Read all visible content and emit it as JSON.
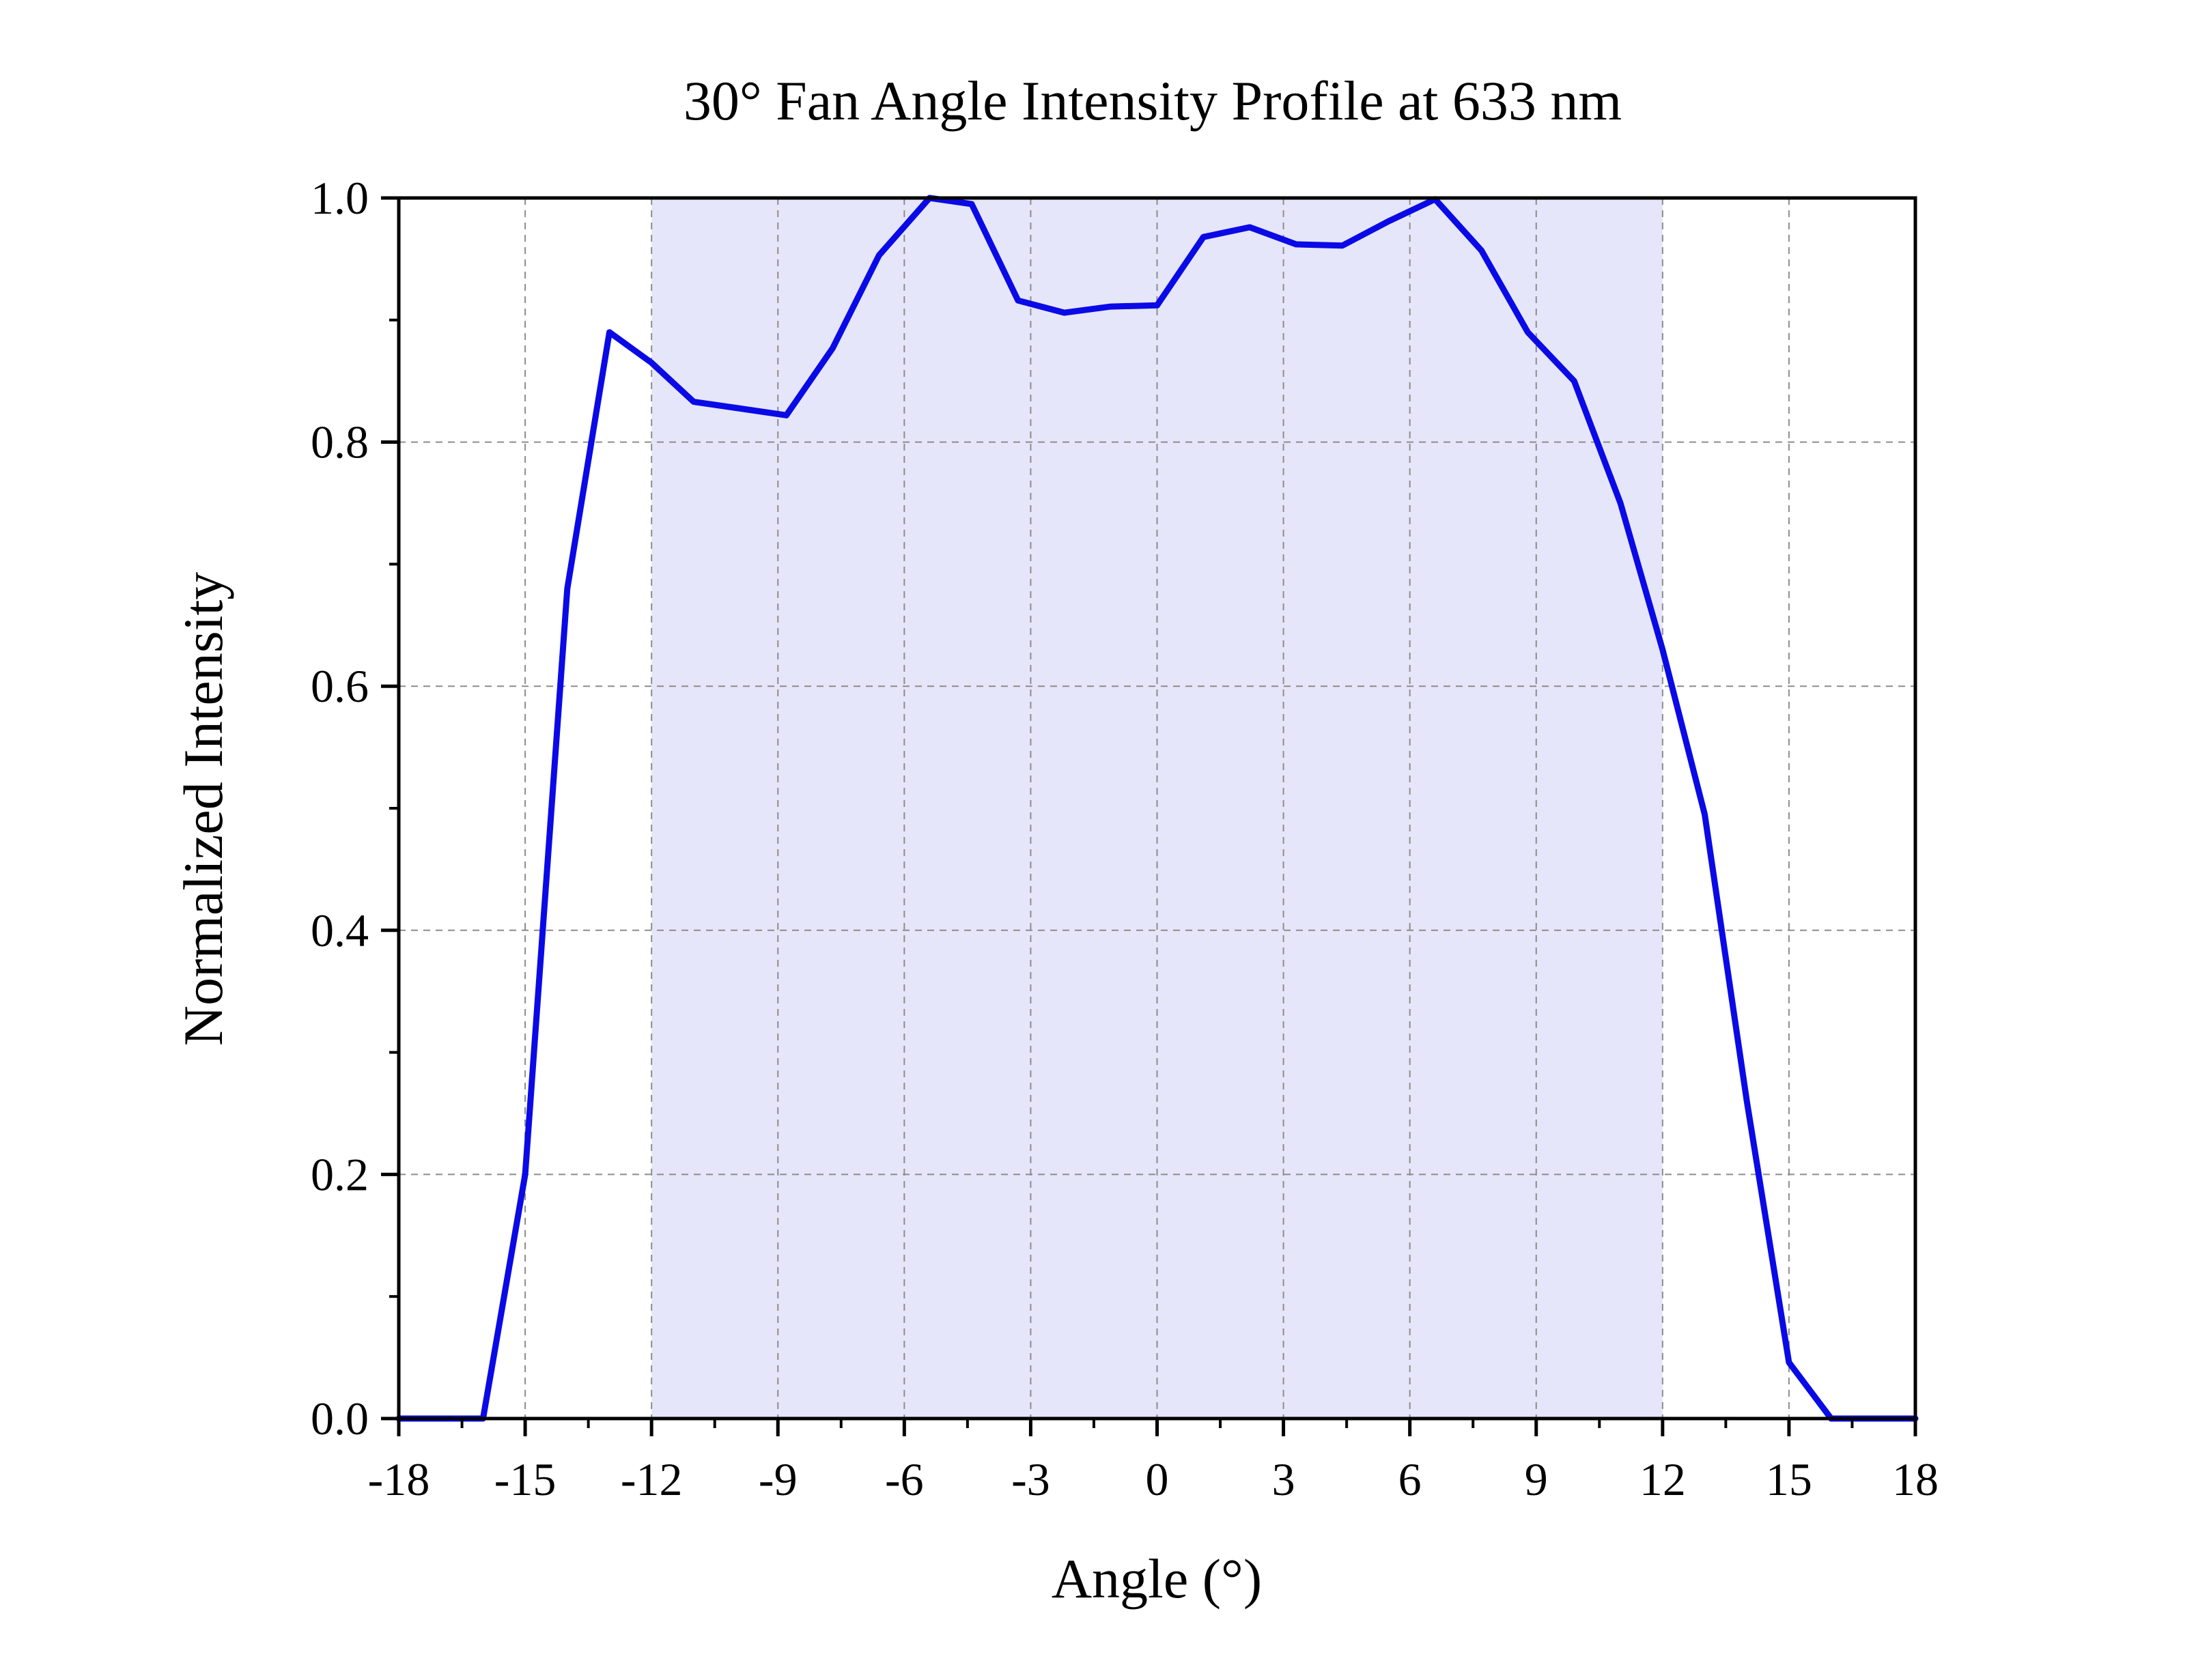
{
  "chart_data": {
    "type": "line",
    "title": "30° Fan Angle Intensity Profile at 633 nm",
    "xlabel": "Angle (°)",
    "ylabel": "Normalized Intensity",
    "xlim": [
      -18,
      18
    ],
    "ylim": [
      0,
      1.0
    ],
    "xticks": [
      -18,
      -15,
      -12,
      -9,
      -6,
      -3,
      0,
      3,
      6,
      9,
      12,
      15,
      18
    ],
    "xtick_labels": [
      "-18",
      "-15",
      "-12",
      "-9",
      "-6",
      "-3",
      "0",
      "3",
      "6",
      "9",
      "12",
      "15",
      "18"
    ],
    "yticks": [
      0,
      0.2,
      0.4,
      0.6,
      0.8,
      1.0
    ],
    "ytick_labels": [
      "0.0",
      "0.2",
      "0.4",
      "0.6",
      "0.8",
      "1.0"
    ],
    "grid": true,
    "shaded_region": {
      "x": [
        -12,
        12
      ],
      "color": "#e6e6fa"
    },
    "series": [
      {
        "color": "#0a0ae6",
        "x": [
          -18,
          -17,
          -16,
          -15,
          -14,
          -13,
          -12,
          -11,
          -10,
          -8.8,
          -7.7,
          -6.6,
          -5.4,
          -4.4,
          -3.3,
          -2.2,
          -1.1,
          0,
          1.1,
          2.2,
          3.3,
          4.4,
          5.5,
          6.6,
          7.7,
          8.8,
          9.9,
          11,
          12,
          13,
          14,
          15,
          16,
          17,
          18
        ],
        "y": [
          0.0,
          0.0,
          0.0,
          0.2,
          0.68,
          0.89,
          0.865,
          0.833,
          0.828,
          0.822,
          0.877,
          0.953,
          1.0,
          0.995,
          0.916,
          0.906,
          0.911,
          0.912,
          0.968,
          0.976,
          0.962,
          0.961,
          0.981,
          0.999,
          0.957,
          0.89,
          0.85,
          0.75,
          0.63,
          0.495,
          0.26,
          0.046,
          0.0,
          0.0,
          0.0
        ]
      }
    ]
  }
}
